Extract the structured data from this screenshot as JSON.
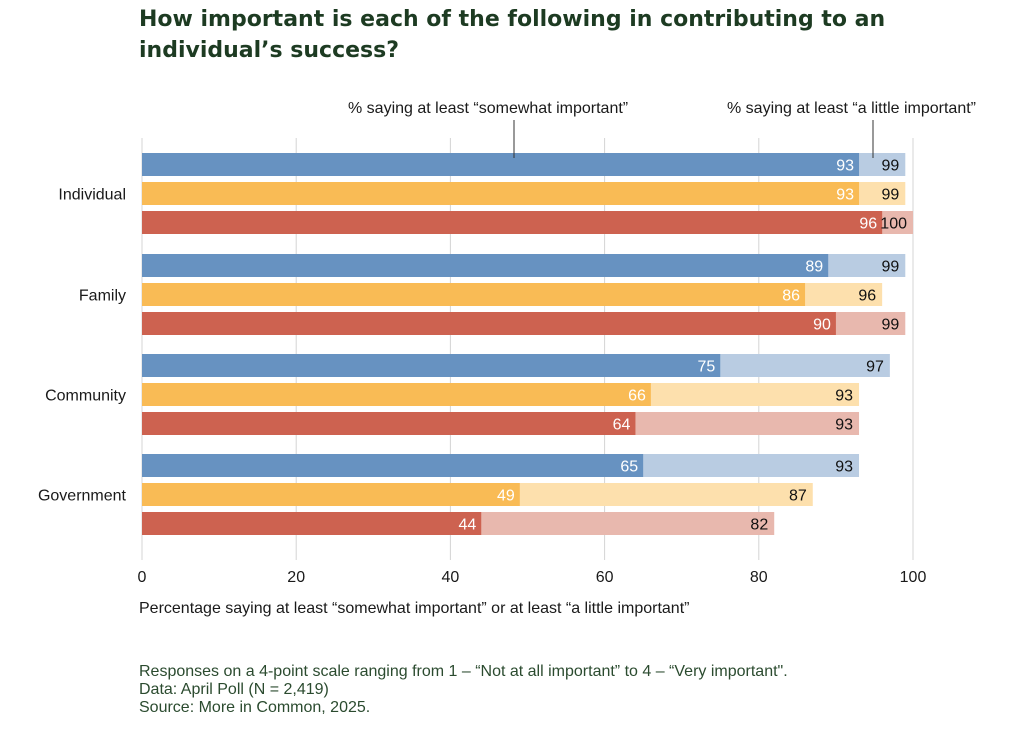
{
  "title": "How important is each of the following in contributing to an individual’s success?",
  "chart_data": {
    "type": "bar",
    "orientation": "horizontal",
    "title": "How important is each of the following in contributing to an individual’s success?",
    "xlabel": "Percentage saying at least “somewhat important” or at least “a little important”",
    "ylabel": "",
    "xlim": [
      0,
      100
    ],
    "xticks": [
      "0",
      "20",
      "40",
      "60",
      "80",
      "100"
    ],
    "grid": true,
    "annotations": {
      "somewhat": "% saying at least “somewhat important”",
      "little": "% saying at least “a little important”"
    },
    "colors": {
      "dark": [
        "#6792c1",
        "#f9bb55",
        "#cd6250"
      ],
      "light": [
        "#b9cce2",
        "#fde0ad",
        "#e8b8ae"
      ]
    },
    "categories": [
      "Individual",
      "Family",
      "Community",
      "Government"
    ],
    "somewhat_important": [
      [
        93,
        93,
        96
      ],
      [
        89,
        86,
        90
      ],
      [
        75,
        66,
        64
      ],
      [
        65,
        49,
        44
      ]
    ],
    "a_little_important": [
      [
        99,
        99,
        100
      ],
      [
        99,
        96,
        99
      ],
      [
        97,
        93,
        93
      ],
      [
        93,
        87,
        82
      ]
    ]
  },
  "footer": {
    "line1": "Responses on a 4-point scale ranging from 1 – “Not at all important” to 4 – “Very important\".",
    "line2": "Data: April Poll (N = 2,419)",
    "line3": "Source: More in Common, 2025."
  }
}
